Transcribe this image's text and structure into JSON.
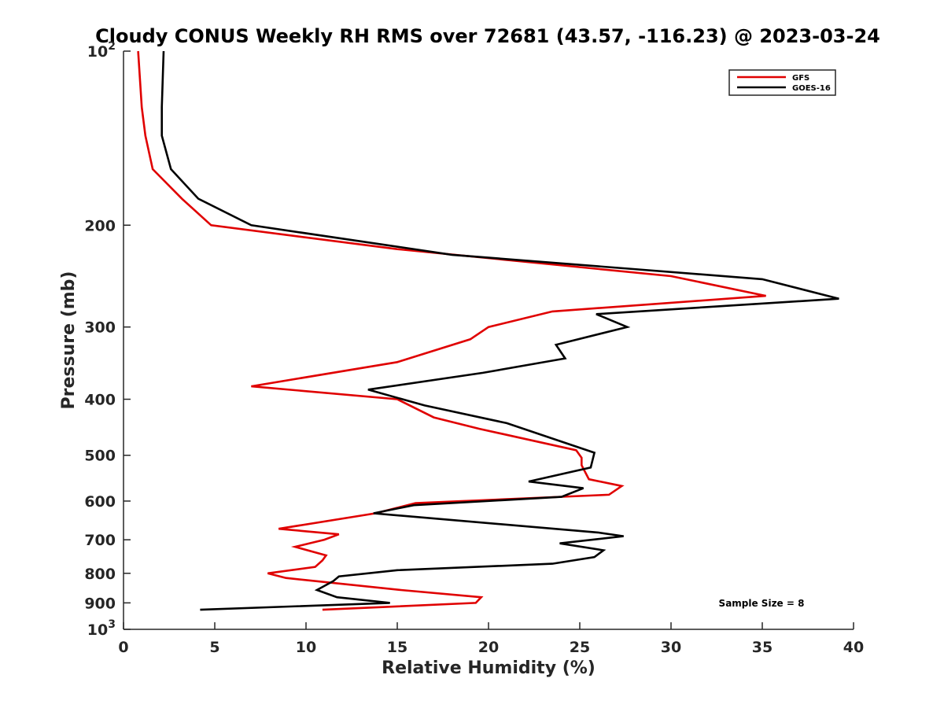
{
  "chart_data": {
    "type": "line",
    "title": "Cloudy CONUS Weekly RH RMS over 72681 (43.57, -116.23) @ 2023-03-24",
    "xlabel": "Relative Humidity (%)",
    "ylabel": "Pressure (mb)",
    "xlim": [
      0,
      40
    ],
    "ylim": [
      100,
      1000
    ],
    "y_scale": "log",
    "y_reversed": true,
    "x_ticks": [
      0,
      5,
      10,
      15,
      20,
      25,
      30,
      35,
      40
    ],
    "x_tick_labels": [
      "0",
      "5",
      "10",
      "15",
      "20",
      "25",
      "30",
      "35",
      "40"
    ],
    "y_ticks": [
      100,
      200,
      300,
      400,
      500,
      600,
      700,
      800,
      900,
      1000
    ],
    "y_tick_labels": [
      "10^2",
      "200",
      "300",
      "400",
      "500",
      "600",
      "700",
      "800",
      "900",
      "10^3"
    ],
    "grid": false,
    "legend_position": "top-right",
    "series": [
      {
        "name": "GFS",
        "color": "#e00000",
        "points": [
          [
            0.8,
            100
          ],
          [
            1.0,
            125
          ],
          [
            1.2,
            140
          ],
          [
            1.6,
            160
          ],
          [
            3.2,
            180
          ],
          [
            4.8,
            200
          ],
          [
            15,
            220
          ],
          [
            30,
            245
          ],
          [
            35.2,
            265
          ],
          [
            23.5,
            282
          ],
          [
            20,
            300
          ],
          [
            19,
            315
          ],
          [
            15,
            345
          ],
          [
            7,
            380
          ],
          [
            15,
            400
          ],
          [
            17,
            430
          ],
          [
            19.5,
            450
          ],
          [
            24.8,
            490
          ],
          [
            25.1,
            505
          ],
          [
            25.1,
            520
          ],
          [
            25.5,
            550
          ],
          [
            27.3,
            565
          ],
          [
            26.6,
            585
          ],
          [
            16,
            605
          ],
          [
            13.8,
            630
          ],
          [
            8.5,
            670
          ],
          [
            11.8,
            685
          ],
          [
            11,
            700
          ],
          [
            9.4,
            720
          ],
          [
            11.1,
            745
          ],
          [
            10.9,
            760
          ],
          [
            10.5,
            780
          ],
          [
            7.9,
            800
          ],
          [
            8.9,
            815
          ],
          [
            15.2,
            855
          ],
          [
            19.6,
            880
          ],
          [
            19.3,
            900
          ],
          [
            10.9,
            925
          ]
        ]
      },
      {
        "name": "GOES-16",
        "color": "#000000",
        "points": [
          [
            2.2,
            100
          ],
          [
            2.1,
            125
          ],
          [
            2.1,
            140
          ],
          [
            2.6,
            160
          ],
          [
            4.1,
            180
          ],
          [
            7,
            200
          ],
          [
            18,
            225
          ],
          [
            35,
            248
          ],
          [
            39.2,
            268
          ],
          [
            25.9,
            285
          ],
          [
            27.6,
            300
          ],
          [
            23.7,
            322
          ],
          [
            24.2,
            340
          ],
          [
            19.7,
            360
          ],
          [
            13.4,
            385
          ],
          [
            16.5,
            410
          ],
          [
            21,
            440
          ],
          [
            25.8,
            495
          ],
          [
            25.6,
            525
          ],
          [
            22.2,
            555
          ],
          [
            25.2,
            570
          ],
          [
            24,
            590
          ],
          [
            15.9,
            610
          ],
          [
            13.7,
            630
          ],
          [
            26,
            680
          ],
          [
            27.4,
            690
          ],
          [
            23.9,
            710
          ],
          [
            26.3,
            730
          ],
          [
            25.8,
            750
          ],
          [
            23.5,
            770
          ],
          [
            15,
            790
          ],
          [
            11.8,
            810
          ],
          [
            11.5,
            825
          ],
          [
            10.6,
            855
          ],
          [
            11.7,
            880
          ],
          [
            14.6,
            900
          ],
          [
            4.2,
            925
          ]
        ]
      }
    ],
    "annotations": [
      "Sample Size = 8"
    ]
  }
}
